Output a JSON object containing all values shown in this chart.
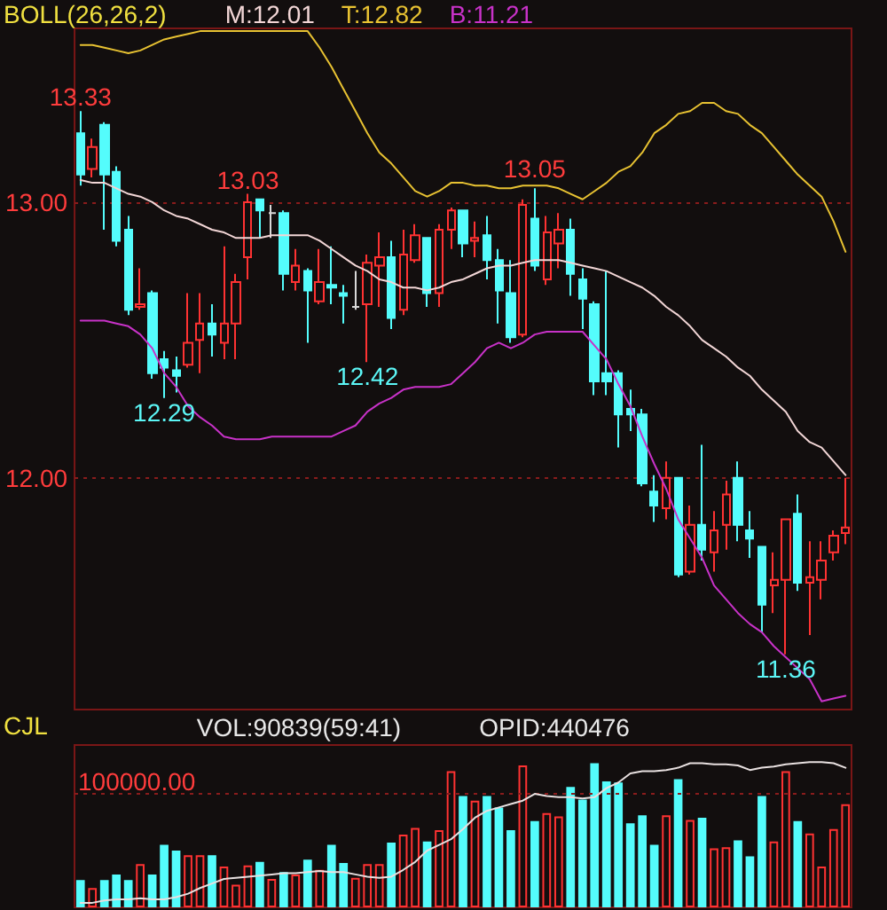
{
  "chart_data": [
    {
      "type": "candlestick",
      "title": "BOLL(26,26,2)",
      "categories": [
        null,
        null,
        null,
        null,
        null,
        null,
        null,
        null,
        null,
        null,
        null,
        null,
        null,
        null,
        null,
        null,
        null,
        null,
        null,
        null,
        null,
        null,
        null,
        null,
        null,
        null,
        null,
        null,
        null,
        null,
        null,
        null,
        null,
        null,
        null,
        null,
        null,
        null,
        null,
        null,
        null,
        null,
        null,
        null,
        null,
        null,
        null,
        null,
        null,
        null,
        null,
        null,
        null,
        null,
        null,
        null,
        null,
        null,
        null,
        null,
        null,
        null,
        null,
        null,
        null
      ],
      "series": [
        {
          "ohlc": [
            [
              13.25,
              13.33,
              13.06,
              13.1
            ],
            [
              13.12,
              13.23,
              13.09,
              13.2
            ],
            [
              13.28,
              13.29,
              12.9,
              13.1
            ],
            [
              13.11,
              13.13,
              12.84,
              12.86
            ],
            [
              12.9,
              12.95,
              12.59,
              12.61
            ],
            [
              12.62,
              12.76,
              12.61,
              12.63
            ],
            [
              12.67,
              12.68,
              12.36,
              12.38
            ],
            [
              12.43,
              12.46,
              12.29,
              12.4
            ],
            [
              12.39,
              12.44,
              12.31,
              12.37
            ],
            [
              12.41,
              12.67,
              12.4,
              12.49
            ],
            [
              12.5,
              12.67,
              12.38,
              12.56
            ],
            [
              12.56,
              12.63,
              12.44,
              12.52
            ],
            [
              12.49,
              12.84,
              12.43,
              12.56
            ],
            [
              12.56,
              12.74,
              12.43,
              12.71
            ],
            [
              12.8,
              13.03,
              12.72,
              13.0
            ],
            [
              13.01,
              13.01,
              12.87,
              12.97
            ],
            [
              12.96,
              12.99,
              12.87,
              12.96
            ],
            [
              12.96,
              12.97,
              12.68,
              12.74
            ],
            [
              12.71,
              12.83,
              12.68,
              12.77
            ],
            [
              12.75,
              12.76,
              12.49,
              12.68
            ],
            [
              12.64,
              12.83,
              12.63,
              12.71
            ],
            [
              12.7,
              12.84,
              12.63,
              12.69
            ],
            [
              12.67,
              12.7,
              12.56,
              12.66
            ],
            [
              12.62,
              12.75,
              12.61,
              12.62
            ],
            [
              12.63,
              12.81,
              12.42,
              12.78
            ],
            [
              12.77,
              12.89,
              12.62,
              12.8
            ],
            [
              12.8,
              12.86,
              12.54,
              12.58
            ],
            [
              12.61,
              12.9,
              12.59,
              12.81
            ],
            [
              12.79,
              12.92,
              12.78,
              12.88
            ],
            [
              12.87,
              12.87,
              12.62,
              12.67
            ],
            [
              12.67,
              12.92,
              12.62,
              12.9
            ],
            [
              12.9,
              12.98,
              12.83,
              12.97
            ],
            [
              12.97,
              12.97,
              12.8,
              12.85
            ],
            [
              12.86,
              12.93,
              12.8,
              12.87
            ],
            [
              12.88,
              12.95,
              12.72,
              12.79
            ],
            [
              12.79,
              12.83,
              12.56,
              12.68
            ],
            [
              12.67,
              12.79,
              12.49,
              12.51
            ],
            [
              12.52,
              13.01,
              12.51,
              12.99
            ],
            [
              12.94,
              13.05,
              12.75,
              12.77
            ],
            [
              12.72,
              12.95,
              12.7,
              12.89
            ],
            [
              12.85,
              12.96,
              12.76,
              12.9
            ],
            [
              12.9,
              12.94,
              12.66,
              12.74
            ],
            [
              12.72,
              12.76,
              12.54,
              12.65
            ],
            [
              12.63,
              12.64,
              12.3,
              12.35
            ],
            [
              12.38,
              12.75,
              12.3,
              12.35
            ],
            [
              12.38,
              12.39,
              12.11,
              12.23
            ],
            [
              12.25,
              12.32,
              12.17,
              12.23
            ],
            [
              12.23,
              12.25,
              11.97,
              11.98
            ],
            [
              11.95,
              12.01,
              11.84,
              11.9
            ],
            [
              11.89,
              12.06,
              11.85,
              12.0
            ],
            [
              12.0,
              12.0,
              11.64,
              11.65
            ],
            [
              11.66,
              11.9,
              11.65,
              11.83
            ],
            [
              11.83,
              12.12,
              11.7,
              11.74
            ],
            [
              11.73,
              11.88,
              11.66,
              11.81
            ],
            [
              11.83,
              11.99,
              11.74,
              11.94
            ],
            [
              12.0,
              12.06,
              11.77,
              11.83
            ],
            [
              11.81,
              11.88,
              11.71,
              11.78
            ],
            [
              11.75,
              11.75,
              11.44,
              11.54
            ],
            [
              11.61,
              11.73,
              11.51,
              11.63
            ],
            [
              11.63,
              11.85,
              11.36,
              11.85
            ],
            [
              11.87,
              11.94,
              11.59,
              11.62
            ],
            [
              11.62,
              11.77,
              11.43,
              11.64
            ],
            [
              11.63,
              11.77,
              11.56,
              11.7
            ],
            [
              11.73,
              11.81,
              11.7,
              11.79
            ],
            [
              11.8,
              12.0,
              11.76,
              11.82
            ]
          ],
          "colors": [
            "#54fcfc",
            "#ff3232",
            "#54fcfc",
            "#54fcfc",
            "#54fcfc",
            "#ff3232",
            "#54fcfc",
            "#54fcfc",
            "#54fcfc",
            "#ff3232",
            "#ff3232",
            "#54fcfc",
            "#ff3232",
            "#ff3232",
            "#ff3232",
            "#54fcfc",
            "#d8d8d8",
            "#54fcfc",
            "#ff3232",
            "#54fcfc",
            "#ff3232",
            "#54fcfc",
            "#54fcfc",
            "#d8d8d8",
            "#ff3232",
            "#ff3232",
            "#54fcfc",
            "#ff3232",
            "#ff3232",
            "#54fcfc",
            "#ff3232",
            "#ff3232",
            "#54fcfc",
            "#ff3232",
            "#54fcfc",
            "#54fcfc",
            "#54fcfc",
            "#ff3232",
            "#54fcfc",
            "#ff3232",
            "#ff3232",
            "#54fcfc",
            "#54fcfc",
            "#54fcfc",
            "#54fcfc",
            "#54fcfc",
            "#54fcfc",
            "#54fcfc",
            "#54fcfc",
            "#ff3232",
            "#54fcfc",
            "#ff3232",
            "#54fcfc",
            "#ff3232",
            "#ff3232",
            "#54fcfc",
            "#54fcfc",
            "#54fcfc",
            "#ff3232",
            "#ff3232",
            "#54fcfc",
            "#ff3232",
            "#ff3232",
            "#ff3232",
            "#ff3232"
          ]
        },
        {
          "type": "line",
          "name": "M:12.01",
          "color": "#f2d6d6",
          "values": [
            13.08,
            13.07,
            13.07,
            13.05,
            13.03,
            13.02,
            13.0,
            12.97,
            12.95,
            12.94,
            12.92,
            12.9,
            12.89,
            12.87,
            12.87,
            12.87,
            12.88,
            12.88,
            12.88,
            12.88,
            12.86,
            12.83,
            12.8,
            12.77,
            12.75,
            12.72,
            12.71,
            12.69,
            12.69,
            12.68,
            12.69,
            12.71,
            12.72,
            12.74,
            12.76,
            12.77,
            12.77,
            12.78,
            12.79,
            12.79,
            12.79,
            12.78,
            12.77,
            12.76,
            12.75,
            12.73,
            12.71,
            12.69,
            12.66,
            12.62,
            12.59,
            12.55,
            12.5,
            12.47,
            12.44,
            12.4,
            12.37,
            12.32,
            12.28,
            12.24,
            12.17,
            12.13,
            12.11,
            12.06,
            12.01
          ]
        },
        {
          "type": "line",
          "name": "T:12.82",
          "color": "#e8c232",
          "values": [
            13.57,
            13.57,
            13.56,
            13.55,
            13.54,
            13.55,
            13.57,
            13.59,
            13.6,
            13.61,
            13.62,
            13.62,
            13.62,
            13.62,
            13.62,
            13.62,
            13.62,
            13.62,
            13.62,
            13.62,
            13.56,
            13.49,
            13.41,
            13.33,
            13.25,
            13.18,
            13.14,
            13.09,
            13.04,
            13.02,
            13.04,
            13.07,
            13.07,
            13.06,
            13.06,
            13.05,
            13.05,
            13.06,
            13.06,
            13.06,
            13.05,
            13.03,
            13.01,
            13.04,
            13.07,
            13.11,
            13.13,
            13.18,
            13.25,
            13.28,
            13.32,
            13.33,
            13.36,
            13.36,
            13.33,
            13.32,
            13.28,
            13.25,
            13.2,
            13.15,
            13.1,
            13.06,
            13.02,
            12.93,
            12.82
          ]
        },
        {
          "type": "line",
          "name": "B:11.21",
          "color": "#c832c8",
          "values": [
            12.57,
            12.57,
            12.57,
            12.56,
            12.55,
            12.52,
            12.47,
            12.38,
            12.33,
            12.26,
            12.22,
            12.19,
            12.15,
            12.14,
            12.14,
            12.14,
            12.15,
            12.15,
            12.15,
            12.15,
            12.15,
            12.15,
            12.17,
            12.19,
            12.24,
            12.27,
            12.29,
            12.32,
            12.33,
            12.33,
            12.33,
            12.34,
            12.38,
            12.42,
            12.47,
            12.49,
            12.47,
            12.49,
            12.52,
            12.53,
            12.53,
            12.53,
            12.53,
            12.48,
            12.43,
            12.34,
            12.26,
            12.15,
            12.05,
            11.96,
            11.85,
            11.78,
            11.71,
            11.61,
            11.56,
            11.51,
            11.47,
            11.44,
            11.39,
            11.35,
            11.31,
            11.27,
            11.19,
            11.2,
            11.21
          ]
        }
      ],
      "ylim": [
        11.16,
        13.63
      ],
      "yticks": [
        {
          "value": 12,
          "label": "12.00"
        },
        {
          "value": 13,
          "label": "13.00"
        }
      ],
      "grid": "y",
      "legend": "top",
      "marker": "none",
      "tick_labels": "y",
      "annotations": [
        {
          "text": "13.33",
          "y": 13.33
        },
        {
          "text": "13.03",
          "y": 13.03
        },
        {
          "text": "13.05",
          "y": 13.05
        },
        {
          "text": "12.29",
          "y": 12.29
        },
        {
          "text": "12.42",
          "y": 12.42
        },
        {
          "text": "11.36",
          "y": 11.36
        }
      ]
    },
    {
      "type": "bar",
      "title": "CJL",
      "categories": [
        null,
        null,
        null,
        null,
        null,
        null,
        null,
        null,
        null,
        null,
        null,
        null,
        null,
        null,
        null,
        null,
        null,
        null,
        null,
        null,
        null,
        null,
        null,
        null,
        null,
        null,
        null,
        null,
        null,
        null,
        null,
        null,
        null,
        null,
        null,
        null,
        null,
        null,
        null,
        null,
        null,
        null,
        null,
        null,
        null,
        null,
        null,
        null,
        null,
        null,
        null,
        null,
        null,
        null,
        null,
        null,
        null,
        null,
        null,
        null,
        null,
        null,
        null,
        null,
        null
      ],
      "series": [
        {
          "values": [
            24000,
            17000,
            24000,
            29000,
            24000,
            38000,
            29000,
            55000,
            50000,
            46000,
            46000,
            46000,
            36000,
            20000,
            37000,
            40000,
            25000,
            31000,
            29000,
            42000,
            33000,
            55000,
            39000,
            26000,
            38000,
            38000,
            57000,
            64000,
            70000,
            58000,
            68000,
            120000,
            98000,
            94000,
            98000,
            88000,
            68000,
            125000,
            76000,
            83000,
            80000,
            106000,
            95000,
            127000,
            111000,
            110000,
            74000,
            81000,
            55000,
            81000,
            113000,
            77000,
            79000,
            52000,
            53000,
            59000,
            45000,
            98000,
            58000,
            120000,
            76000,
            65000,
            36000,
            69000,
            90839
          ],
          "colors": [
            "#54fcfc",
            "#ff3232",
            "#54fcfc",
            "#54fcfc",
            "#54fcfc",
            "#ff3232",
            "#54fcfc",
            "#54fcfc",
            "#54fcfc",
            "#ff3232",
            "#ff3232",
            "#54fcfc",
            "#ff3232",
            "#ff3232",
            "#ff3232",
            "#54fcfc",
            "#ff3232",
            "#54fcfc",
            "#ff3232",
            "#54fcfc",
            "#ff3232",
            "#54fcfc",
            "#54fcfc",
            "#ff3232",
            "#ff3232",
            "#ff3232",
            "#54fcfc",
            "#ff3232",
            "#ff3232",
            "#54fcfc",
            "#ff3232",
            "#ff3232",
            "#54fcfc",
            "#ff3232",
            "#54fcfc",
            "#54fcfc",
            "#54fcfc",
            "#ff3232",
            "#54fcfc",
            "#ff3232",
            "#ff3232",
            "#54fcfc",
            "#54fcfc",
            "#54fcfc",
            "#54fcfc",
            "#54fcfc",
            "#54fcfc",
            "#54fcfc",
            "#54fcfc",
            "#ff3232",
            "#54fcfc",
            "#ff3232",
            "#54fcfc",
            "#ff3232",
            "#ff3232",
            "#54fcfc",
            "#54fcfc",
            "#54fcfc",
            "#ff3232",
            "#ff3232",
            "#54fcfc",
            "#ff3232",
            "#ff3232",
            "#ff3232",
            "#ff3232"
          ]
        },
        {
          "type": "line",
          "color": "#e8e0e0",
          "values": [
            4000,
            4000,
            6000,
            7000,
            7000,
            8000,
            7000,
            7000,
            9000,
            12000,
            17000,
            21000,
            25000,
            26000,
            27000,
            28000,
            29000,
            30000,
            30000,
            31000,
            32000,
            31000,
            31000,
            29000,
            27000,
            26000,
            27000,
            33000,
            40000,
            50000,
            55000,
            60000,
            69000,
            79000,
            85000,
            88000,
            91000,
            94000,
            100000,
            98000,
            97000,
            97000,
            96000,
            97000,
            105000,
            110000,
            118000,
            120000,
            120000,
            121000,
            123000,
            127000,
            127000,
            126000,
            126000,
            125000,
            121000,
            123000,
            124000,
            126000,
            127000,
            128000,
            128000,
            127000,
            123000
          ]
        }
      ],
      "ylim": [
        0,
        143000
      ],
      "yticks": [
        {
          "value": 100000,
          "label": "100000.00"
        }
      ],
      "ref_lines": [
        {
          "axis": "y",
          "value": 100000,
          "color": "#8a1c1c",
          "line_style": "dotted"
        }
      ],
      "marker": "none",
      "tick_labels": "y",
      "annotations": [
        "VOL:90839(59:41)",
        "OPID:440476"
      ]
    }
  ]
}
